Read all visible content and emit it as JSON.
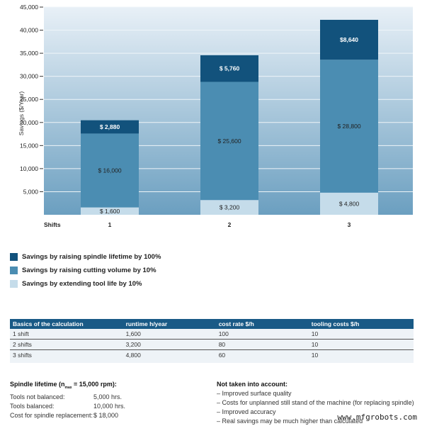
{
  "chart_data": {
    "type": "bar",
    "stacked": true,
    "ylabel": "Savings ($/Year)",
    "xlabel": "Shifts",
    "categories": [
      "1",
      "2",
      "3"
    ],
    "ylim": [
      0,
      45000
    ],
    "yticks": [
      "5,000",
      "10,000",
      "15,000",
      "20,000",
      "25,000",
      "30,000",
      "35,000",
      "40,000",
      "45,000"
    ],
    "ytick_values": [
      5000,
      10000,
      15000,
      20000,
      25000,
      30000,
      35000,
      40000,
      45000
    ],
    "grid": true,
    "series": [
      {
        "name": "Savings by extending tool life by 10%",
        "values": [
          1600,
          3200,
          4800
        ],
        "labels": [
          "$ 1,600",
          "$ 3,200",
          "$ 4,800"
        ],
        "color": "#c5dcea"
      },
      {
        "name": "Savings by raising cutting volume by 10%",
        "values": [
          16000,
          25600,
          28800
        ],
        "labels": [
          "$ 16,000",
          "$ 25,600",
          "$ 28,800"
        ],
        "color": "#4b8db2"
      },
      {
        "name": "Savings by raising spindle lifetime by 100%",
        "values": [
          2880,
          5760,
          8640
        ],
        "labels": [
          "$ 2,880",
          "$ 5,760",
          "$8,640"
        ],
        "color": "#12527c"
      }
    ],
    "legend_position": "bottom-left"
  },
  "legend": [
    {
      "label": "Savings by raising spindle lifetime by 100%",
      "color": "#12527c"
    },
    {
      "label": "Savings by raising cutting volume by 10%",
      "color": "#4b8db2"
    },
    {
      "label": "Savings by extending tool life by 10%",
      "color": "#c5dcea"
    }
  ],
  "table": {
    "headers": [
      "Basics of the calculation",
      "runtime h/year",
      "cost rate $/h",
      "tooling costs $/h"
    ],
    "rows": [
      [
        "1 shift",
        "1,600",
        "100",
        "10"
      ],
      [
        "2 shifts",
        "3,200",
        "80",
        "10"
      ],
      [
        "3 shifts",
        "4,800",
        "60",
        "10"
      ]
    ]
  },
  "spindle": {
    "title": "Spindle lifetime (n",
    "sub": "max",
    "title_rest": " = 15,000 rpm):",
    "rows": [
      [
        "Tools not balanced:",
        "5,000 hrs."
      ],
      [
        "Tools balanced:",
        "10,000 hrs."
      ],
      [
        "Cost for spindle replacement:",
        "$ 18,000"
      ]
    ]
  },
  "not_taken": {
    "title": "Not taken into account:",
    "items": [
      "– Improved surface quality",
      "– Costs for unplanned still stand of the machine (for replacing spindle)",
      "– Improved accuracy",
      "– Real savings may be much higher than calculated"
    ]
  },
  "watermark": "www.mfgrobots.com"
}
